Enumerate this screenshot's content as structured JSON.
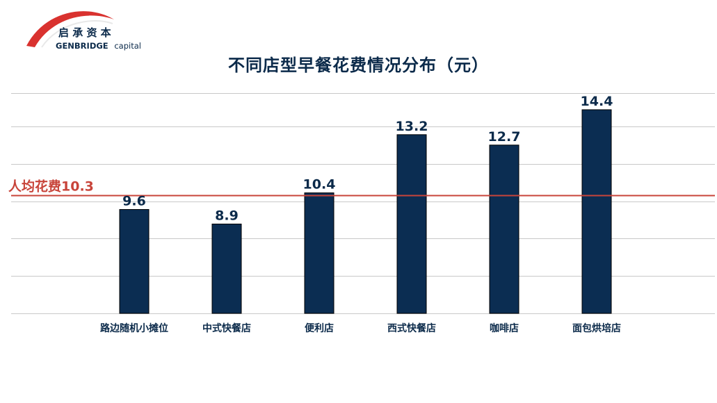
{
  "brand": {
    "name_cn": "启 承 资 本",
    "name_en_bold": "GENBRIDGE",
    "name_en_light": "capital"
  },
  "colors": {
    "bar": "#0b2d52",
    "reference_line": "#c8443a",
    "grid": "#c8c8c8",
    "text": "#0b2a4a",
    "logo_red": "#d9322f"
  },
  "chart_data": {
    "type": "bar",
    "title": "不同店型早餐花费情况分布（元）",
    "categories": [
      "路边随机小摊位",
      "中式快餐店",
      "便利店",
      "西式快餐店",
      "咖啡店",
      "面包烘培店"
    ],
    "values": [
      9.6,
      8.9,
      10.4,
      13.2,
      12.7,
      14.4
    ],
    "data_labels": [
      "9.6",
      "8.9",
      "10.4",
      "13.2",
      "12.7",
      "14.4"
    ],
    "reference_line": {
      "value": 10.3,
      "label": "人均花费10.3"
    },
    "ylim": [
      4.6,
      15.2
    ],
    "gridlines": [
      4.6,
      6.4,
      8.2,
      10.0,
      11.8,
      13.6,
      15.2
    ],
    "grid": true,
    "legend": "none",
    "xlabel": "",
    "ylabel": ""
  }
}
